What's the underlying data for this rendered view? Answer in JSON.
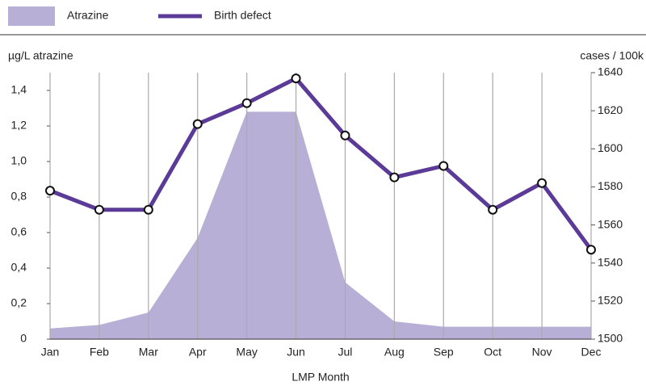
{
  "chart_data": {
    "type": "combo",
    "x_label": "LMP Month",
    "y_label": "µg/L atrazine",
    "y2_label": "cases / 100k",
    "categories": [
      "Jan",
      "Feb",
      "Mar",
      "Apr",
      "May",
      "Jun",
      "Jul",
      "Aug",
      "Sep",
      "Oct",
      "Nov",
      "Dec"
    ],
    "series": [
      {
        "name": "Atrazine",
        "type": "area",
        "color": "#b8afd6",
        "values": [
          0.06,
          0.08,
          0.15,
          0.57,
          1.28,
          1.28,
          0.32,
          0.1,
          0.07,
          0.07,
          0.07,
          0.07
        ]
      },
      {
        "name": "Birth defect",
        "type": "line",
        "color": "#5b3a98",
        "axis": "y2",
        "values": [
          1578,
          1568,
          1568,
          1613,
          1624,
          1637,
          1607,
          1585,
          1591,
          1568,
          1582,
          1547
        ]
      }
    ],
    "ylim": [
      0,
      1.5
    ],
    "yticks": [
      0,
      {
        "value": 0.2,
        "label": "0,2"
      },
      {
        "value": 0.4,
        "label": "0,4"
      },
      {
        "value": 0.6,
        "label": "0,6"
      },
      {
        "value": 0.8,
        "label": "0,8"
      },
      {
        "value": 1.0,
        "label": "1,0"
      },
      {
        "value": 1.2,
        "label": "1,2"
      },
      {
        "value": 1.4,
        "label": "1,4"
      }
    ],
    "y2lim": [
      1500,
      1640
    ],
    "y2ticks": [
      1500,
      1520,
      1540,
      1560,
      1580,
      1600,
      1620,
      1640
    ],
    "legend": "top-left"
  }
}
